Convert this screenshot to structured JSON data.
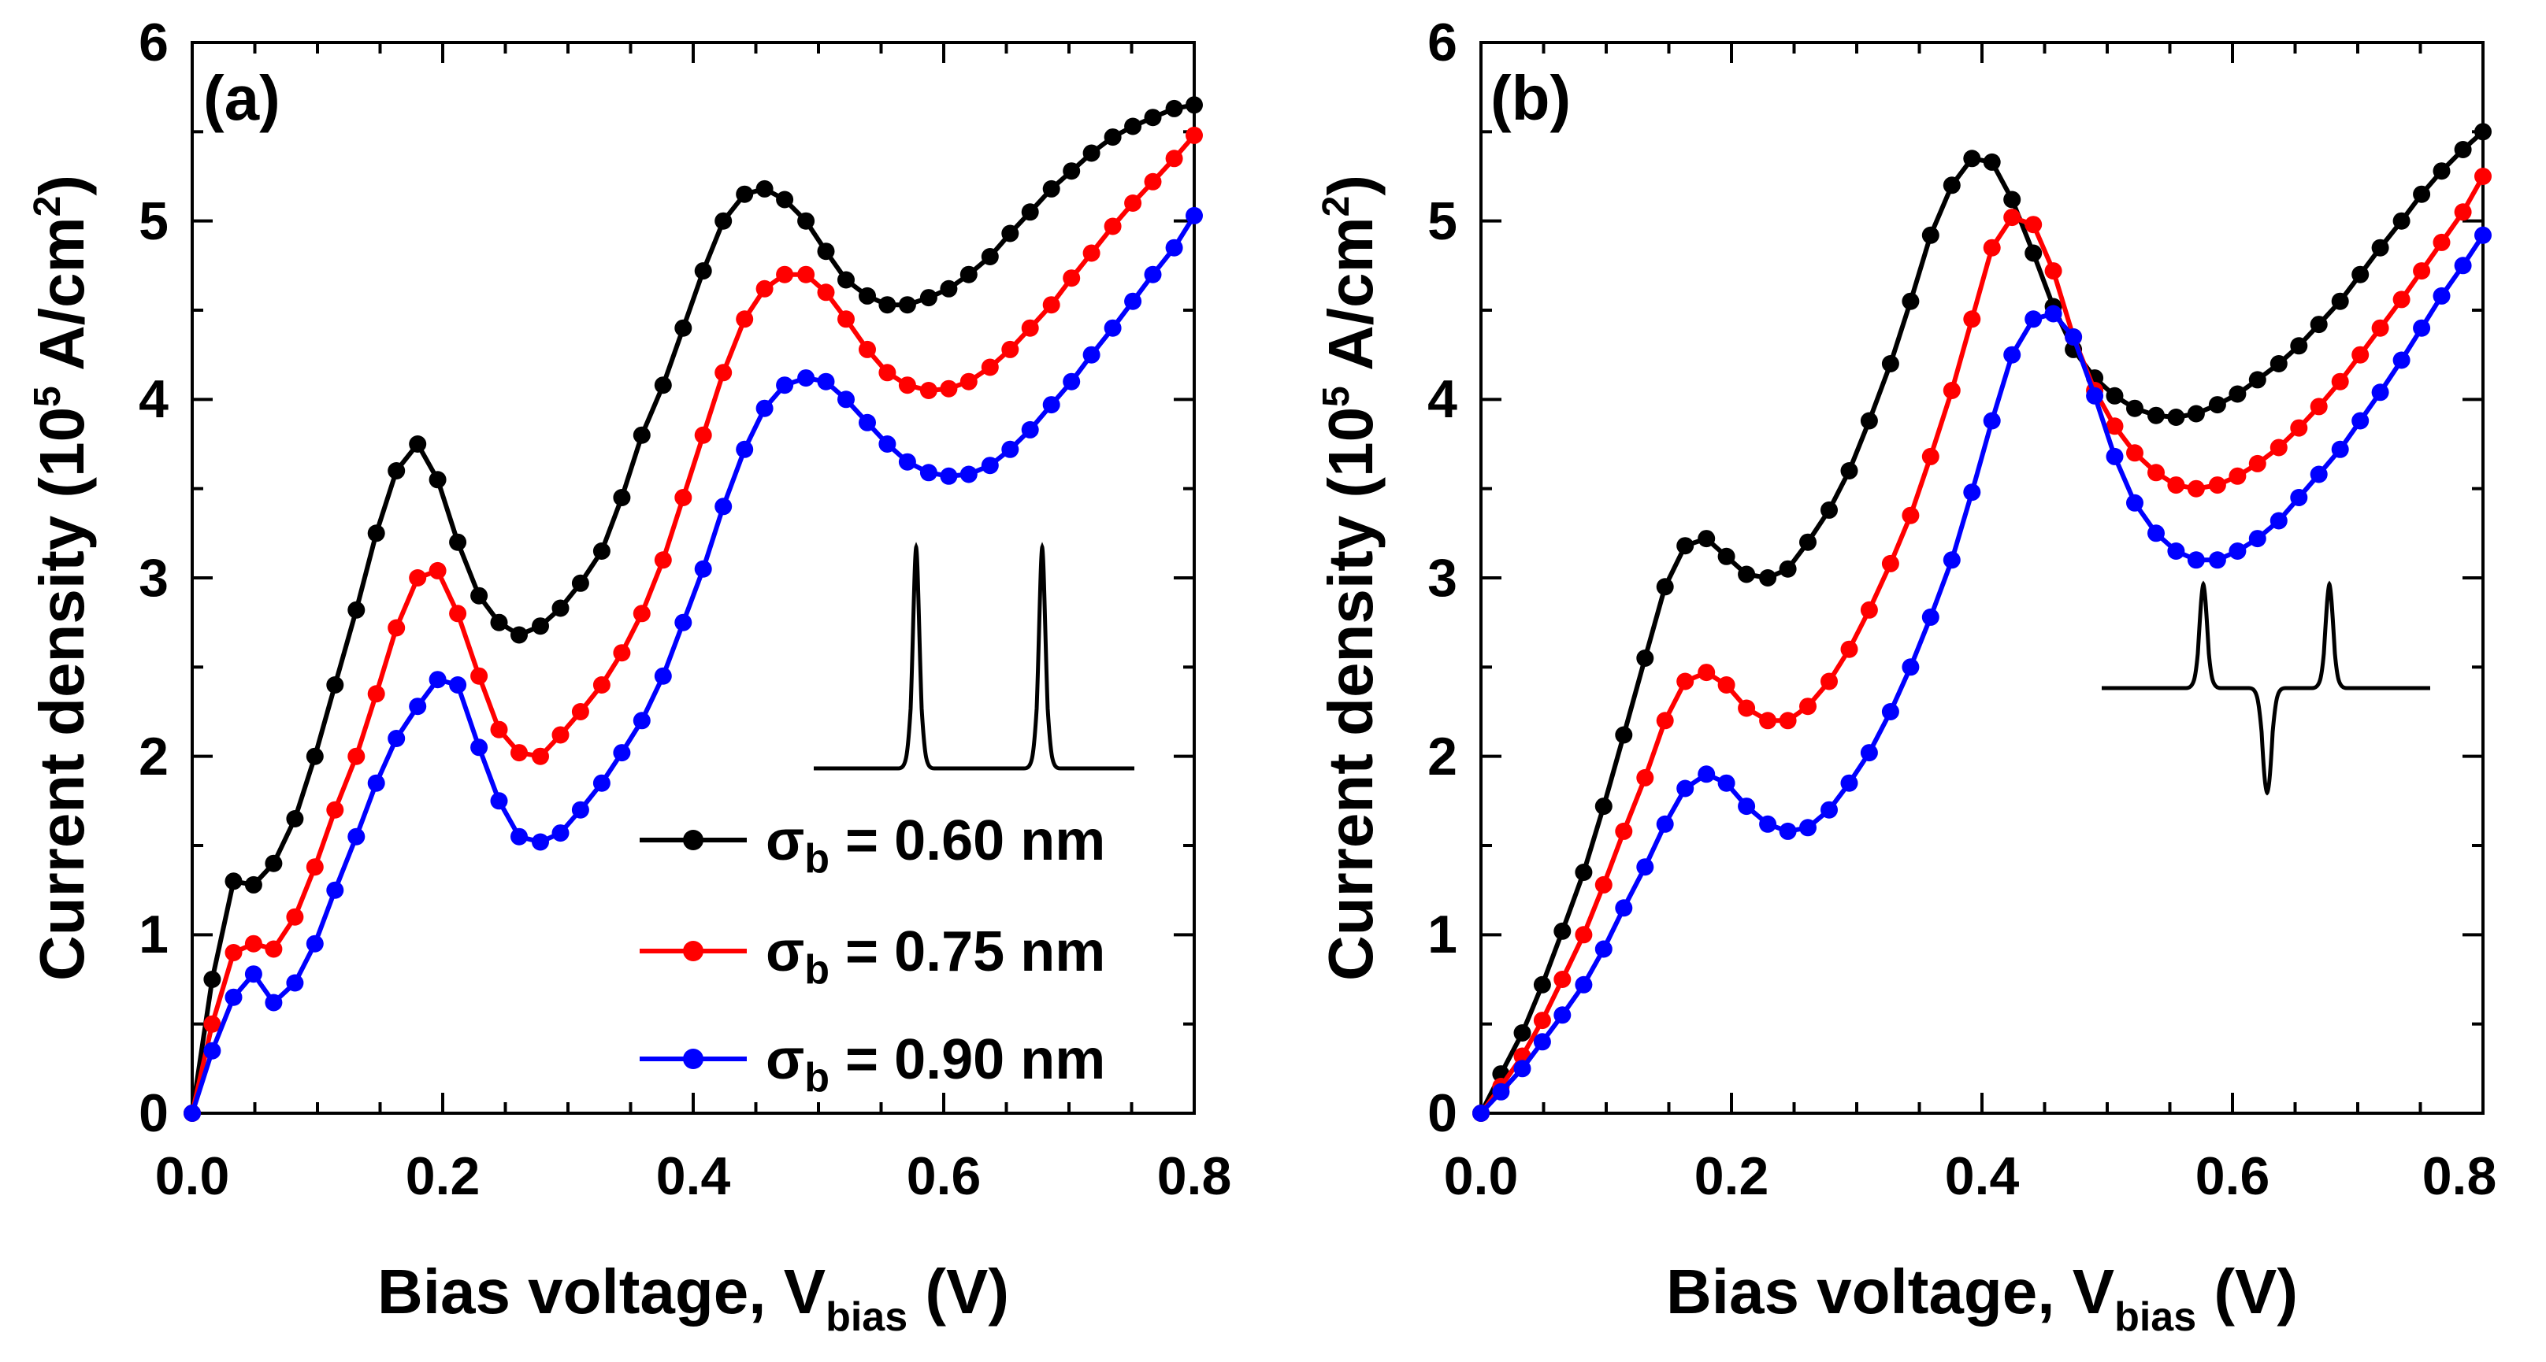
{
  "chart_data": [
    {
      "type": "line",
      "panel_label": "(a)",
      "xlabel": {
        "main": "Bias voltage, V",
        "sub": "bias",
        "tail": " (V)"
      },
      "ylabel": {
        "main": "Current density (10",
        "sup": "5",
        "mid": " A/cm",
        "sup2": "2",
        "tail": ")"
      },
      "xlim": [
        0,
        0.8
      ],
      "ylim": [
        0,
        6
      ],
      "xticks": [
        "0.0",
        "0.2",
        "0.4",
        "0.6",
        "0.8"
      ],
      "yticks": [
        "0",
        "1",
        "2",
        "3",
        "4",
        "5",
        "6"
      ],
      "legend": {
        "placement": "bottom-right",
        "entries": [
          {
            "sym": "σ",
            "sub": "b",
            "text": " = 0.60 nm",
            "color": "#000000"
          },
          {
            "sym": "σ",
            "sub": "b",
            "text": " = 0.75 nm",
            "color": "#ff0000"
          },
          {
            "sym": "σ",
            "sub": "b",
            "text": " = 0.90 nm",
            "color": "#0000ff"
          }
        ]
      },
      "inset": {
        "shape": "two positive peaks"
      },
      "series": [
        {
          "name": "σb = 0.60 nm",
          "color": "#000000",
          "x": [
            0.0,
            0.016,
            0.033,
            0.049,
            0.065,
            0.082,
            0.098,
            0.114,
            0.131,
            0.147,
            0.163,
            0.18,
            0.196,
            0.212,
            0.229,
            0.245,
            0.261,
            0.278,
            0.294,
            0.31,
            0.327,
            0.343,
            0.359,
            0.376,
            0.392,
            0.408,
            0.424,
            0.441,
            0.457,
            0.473,
            0.49,
            0.506,
            0.522,
            0.539,
            0.555,
            0.571,
            0.588,
            0.604,
            0.62,
            0.637,
            0.653,
            0.669,
            0.686,
            0.702,
            0.718,
            0.735,
            0.751,
            0.767,
            0.784,
            0.8
          ],
          "y": [
            0.0,
            0.75,
            1.3,
            1.28,
            1.4,
            1.65,
            2.0,
            2.4,
            2.82,
            3.25,
            3.6,
            3.75,
            3.55,
            3.2,
            2.9,
            2.75,
            2.68,
            2.73,
            2.83,
            2.97,
            3.15,
            3.45,
            3.8,
            4.08,
            4.4,
            4.72,
            5.0,
            5.15,
            5.18,
            5.12,
            5.0,
            4.83,
            4.67,
            4.58,
            4.53,
            4.53,
            4.57,
            4.62,
            4.7,
            4.8,
            4.93,
            5.05,
            5.18,
            5.28,
            5.38,
            5.47,
            5.53,
            5.58,
            5.63,
            5.65
          ]
        },
        {
          "name": "σb = 0.75 nm",
          "color": "#ff0000",
          "x": [
            0.0,
            0.016,
            0.033,
            0.049,
            0.065,
            0.082,
            0.098,
            0.114,
            0.131,
            0.147,
            0.163,
            0.18,
            0.196,
            0.212,
            0.229,
            0.245,
            0.261,
            0.278,
            0.294,
            0.31,
            0.327,
            0.343,
            0.359,
            0.376,
            0.392,
            0.408,
            0.424,
            0.441,
            0.457,
            0.473,
            0.49,
            0.506,
            0.522,
            0.539,
            0.555,
            0.571,
            0.588,
            0.604,
            0.62,
            0.637,
            0.653,
            0.669,
            0.686,
            0.702,
            0.718,
            0.735,
            0.751,
            0.767,
            0.784,
            0.8
          ],
          "y": [
            0.0,
            0.5,
            0.9,
            0.95,
            0.92,
            1.1,
            1.38,
            1.7,
            2.0,
            2.35,
            2.72,
            3.0,
            3.04,
            2.8,
            2.45,
            2.15,
            2.02,
            2.0,
            2.12,
            2.25,
            2.4,
            2.58,
            2.8,
            3.1,
            3.45,
            3.8,
            4.15,
            4.45,
            4.62,
            4.7,
            4.7,
            4.6,
            4.45,
            4.28,
            4.15,
            4.08,
            4.05,
            4.06,
            4.1,
            4.18,
            4.28,
            4.4,
            4.53,
            4.68,
            4.82,
            4.97,
            5.1,
            5.22,
            5.35,
            5.48
          ]
        },
        {
          "name": "σb = 0.90 nm",
          "color": "#0000ff",
          "x": [
            0.0,
            0.016,
            0.033,
            0.049,
            0.065,
            0.082,
            0.098,
            0.114,
            0.131,
            0.147,
            0.163,
            0.18,
            0.196,
            0.212,
            0.229,
            0.245,
            0.261,
            0.278,
            0.294,
            0.31,
            0.327,
            0.343,
            0.359,
            0.376,
            0.392,
            0.408,
            0.424,
            0.441,
            0.457,
            0.473,
            0.49,
            0.506,
            0.522,
            0.539,
            0.555,
            0.571,
            0.588,
            0.604,
            0.62,
            0.637,
            0.653,
            0.669,
            0.686,
            0.702,
            0.718,
            0.735,
            0.751,
            0.767,
            0.784,
            0.8
          ],
          "y": [
            0.0,
            0.35,
            0.65,
            0.78,
            0.62,
            0.73,
            0.95,
            1.25,
            1.55,
            1.85,
            2.1,
            2.28,
            2.43,
            2.4,
            2.05,
            1.75,
            1.55,
            1.52,
            1.57,
            1.7,
            1.85,
            2.02,
            2.2,
            2.45,
            2.75,
            3.05,
            3.4,
            3.72,
            3.95,
            4.08,
            4.12,
            4.1,
            4.0,
            3.87,
            3.75,
            3.65,
            3.59,
            3.57,
            3.58,
            3.63,
            3.72,
            3.83,
            3.97,
            4.1,
            4.25,
            4.4,
            4.55,
            4.7,
            4.85,
            5.03
          ]
        }
      ]
    },
    {
      "type": "line",
      "panel_label": "(b)",
      "xlabel": {
        "main": "Bias voltage, V",
        "sub": "bias",
        "tail": " (V)"
      },
      "ylabel": {
        "main": "Current density (10",
        "sup": "5",
        "mid": " A/cm",
        "sup2": "2",
        "tail": ")"
      },
      "xlim": [
        0,
        0.8
      ],
      "ylim": [
        0,
        6
      ],
      "xticks": [
        "0.0",
        "0.2",
        "0.4",
        "0.6",
        "0.8"
      ],
      "yticks": [
        "0",
        "1",
        "2",
        "3",
        "4",
        "5",
        "6"
      ],
      "inset": {
        "shape": "two positive peaks with negative dip between"
      },
      "series": [
        {
          "name": "σb = 0.60 nm",
          "color": "#000000",
          "x": [
            0.0,
            0.016,
            0.033,
            0.049,
            0.065,
            0.082,
            0.098,
            0.114,
            0.131,
            0.147,
            0.163,
            0.18,
            0.196,
            0.212,
            0.229,
            0.245,
            0.261,
            0.278,
            0.294,
            0.31,
            0.327,
            0.343,
            0.359,
            0.376,
            0.392,
            0.408,
            0.424,
            0.441,
            0.457,
            0.473,
            0.49,
            0.506,
            0.522,
            0.539,
            0.555,
            0.571,
            0.588,
            0.604,
            0.62,
            0.637,
            0.653,
            0.669,
            0.686,
            0.702,
            0.718,
            0.735,
            0.751,
            0.767,
            0.784,
            0.8
          ],
          "y": [
            0.0,
            0.22,
            0.45,
            0.72,
            1.02,
            1.35,
            1.72,
            2.12,
            2.55,
            2.95,
            3.18,
            3.22,
            3.12,
            3.02,
            3.0,
            3.05,
            3.2,
            3.38,
            3.6,
            3.88,
            4.2,
            4.55,
            4.92,
            5.2,
            5.35,
            5.33,
            5.12,
            4.82,
            4.52,
            4.28,
            4.12,
            4.02,
            3.95,
            3.91,
            3.9,
            3.92,
            3.97,
            4.03,
            4.11,
            4.2,
            4.3,
            4.42,
            4.55,
            4.7,
            4.85,
            5.0,
            5.15,
            5.28,
            5.4,
            5.5
          ]
        },
        {
          "name": "σb = 0.75 nm",
          "color": "#ff0000",
          "x": [
            0.0,
            0.016,
            0.033,
            0.049,
            0.065,
            0.082,
            0.098,
            0.114,
            0.131,
            0.147,
            0.163,
            0.18,
            0.196,
            0.212,
            0.229,
            0.245,
            0.261,
            0.278,
            0.294,
            0.31,
            0.327,
            0.343,
            0.359,
            0.376,
            0.392,
            0.408,
            0.424,
            0.441,
            0.457,
            0.473,
            0.49,
            0.506,
            0.522,
            0.539,
            0.555,
            0.571,
            0.588,
            0.604,
            0.62,
            0.637,
            0.653,
            0.669,
            0.686,
            0.702,
            0.718,
            0.735,
            0.751,
            0.767,
            0.784,
            0.8
          ],
          "y": [
            0.0,
            0.15,
            0.32,
            0.52,
            0.75,
            1.0,
            1.28,
            1.58,
            1.88,
            2.2,
            2.42,
            2.47,
            2.4,
            2.27,
            2.2,
            2.2,
            2.28,
            2.42,
            2.6,
            2.82,
            3.08,
            3.35,
            3.68,
            4.05,
            4.45,
            4.85,
            5.02,
            4.98,
            4.72,
            4.35,
            4.05,
            3.85,
            3.7,
            3.59,
            3.52,
            3.5,
            3.52,
            3.57,
            3.64,
            3.73,
            3.84,
            3.96,
            4.1,
            4.25,
            4.4,
            4.56,
            4.72,
            4.88,
            5.05,
            5.25
          ]
        },
        {
          "name": "σb = 0.90 nm",
          "color": "#0000ff",
          "x": [
            0.0,
            0.016,
            0.033,
            0.049,
            0.065,
            0.082,
            0.098,
            0.114,
            0.131,
            0.147,
            0.163,
            0.18,
            0.196,
            0.212,
            0.229,
            0.245,
            0.261,
            0.278,
            0.294,
            0.31,
            0.327,
            0.343,
            0.359,
            0.376,
            0.392,
            0.408,
            0.424,
            0.441,
            0.457,
            0.473,
            0.49,
            0.506,
            0.522,
            0.539,
            0.555,
            0.571,
            0.588,
            0.604,
            0.62,
            0.637,
            0.653,
            0.669,
            0.686,
            0.702,
            0.718,
            0.735,
            0.751,
            0.767,
            0.784,
            0.8
          ],
          "y": [
            0.0,
            0.12,
            0.25,
            0.4,
            0.55,
            0.72,
            0.92,
            1.15,
            1.38,
            1.62,
            1.82,
            1.9,
            1.85,
            1.72,
            1.62,
            1.58,
            1.6,
            1.7,
            1.85,
            2.02,
            2.25,
            2.5,
            2.78,
            3.1,
            3.48,
            3.88,
            4.25,
            4.45,
            4.48,
            4.35,
            4.02,
            3.68,
            3.42,
            3.25,
            3.15,
            3.1,
            3.1,
            3.15,
            3.22,
            3.32,
            3.45,
            3.58,
            3.72,
            3.88,
            4.04,
            4.22,
            4.4,
            4.58,
            4.75,
            4.92
          ]
        }
      ]
    }
  ]
}
